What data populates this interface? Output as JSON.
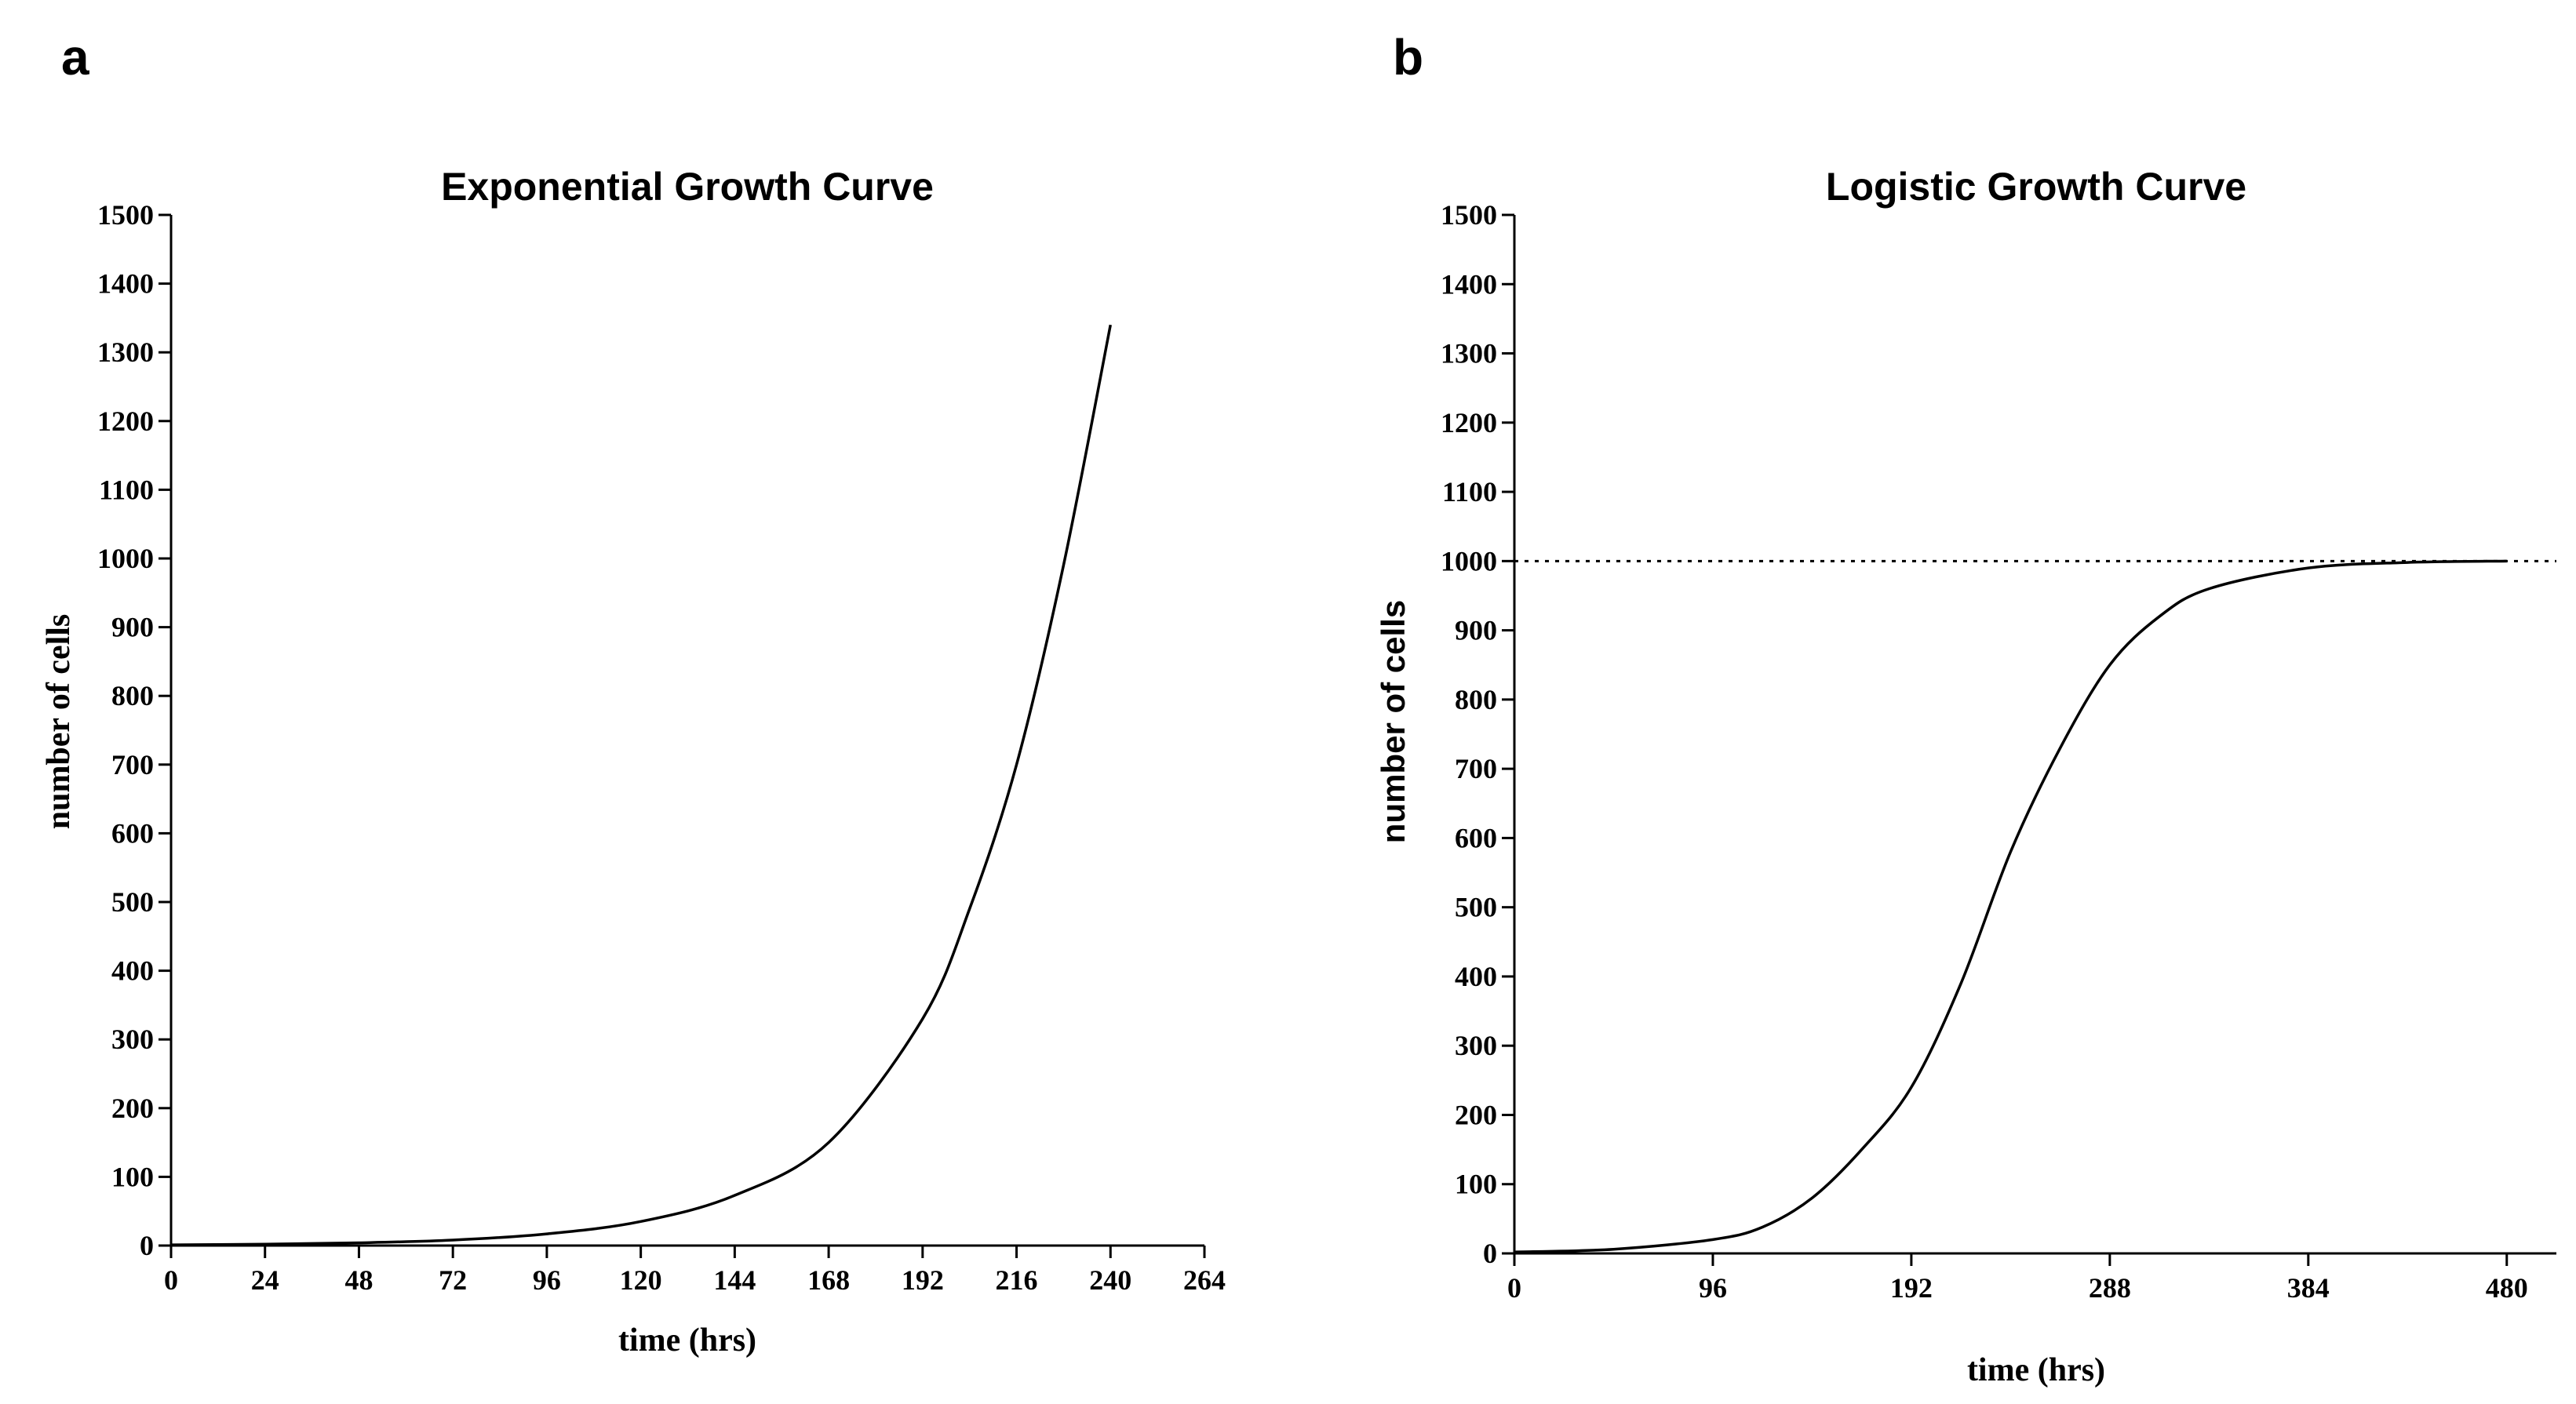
{
  "panel_letters": {
    "a": "a",
    "b": "b"
  },
  "chart_data": [
    {
      "id": "exponential",
      "type": "line",
      "title": "Exponential Growth Curve",
      "xlabel": "time (hrs)",
      "ylabel": "number of cells",
      "xlim": [
        0,
        264
      ],
      "ylim": [
        0,
        1500
      ],
      "xticks": [
        0,
        24,
        48,
        72,
        96,
        120,
        144,
        168,
        192,
        216,
        240,
        264
      ],
      "yticks": [
        0,
        100,
        200,
        300,
        400,
        500,
        600,
        700,
        800,
        900,
        1000,
        1100,
        1200,
        1300,
        1400,
        1500
      ],
      "grid": false,
      "series": [
        {
          "name": "exponential",
          "x": [
            0,
            24,
            48,
            72,
            96,
            120,
            144,
            168,
            192,
            204,
            216,
            228,
            240
          ],
          "y": [
            1,
            2,
            4,
            8,
            17,
            35,
            73,
            150,
            330,
            490,
            700,
            990,
            1340
          ]
        }
      ]
    },
    {
      "id": "logistic",
      "type": "line",
      "title": "Logistic Growth Curve",
      "xlabel": "time (hrs)",
      "ylabel": "number of cells",
      "xlim": [
        0,
        504
      ],
      "ylim": [
        0,
        1500
      ],
      "xticks": [
        0,
        96,
        192,
        288,
        384,
        480
      ],
      "yticks": [
        0,
        100,
        200,
        300,
        400,
        500,
        600,
        700,
        800,
        900,
        1000,
        1100,
        1200,
        1300,
        1400,
        1500
      ],
      "grid": false,
      "carrying_capacity": 1000,
      "series": [
        {
          "name": "logistic",
          "x": [
            0,
            48,
            96,
            120,
            144,
            168,
            192,
            216,
            240,
            264,
            288,
            312,
            336,
            384,
            432,
            480
          ],
          "y": [
            2,
            6,
            20,
            38,
            80,
            150,
            240,
            390,
            580,
            730,
            850,
            920,
            960,
            990,
            998,
            1000
          ]
        }
      ]
    }
  ]
}
